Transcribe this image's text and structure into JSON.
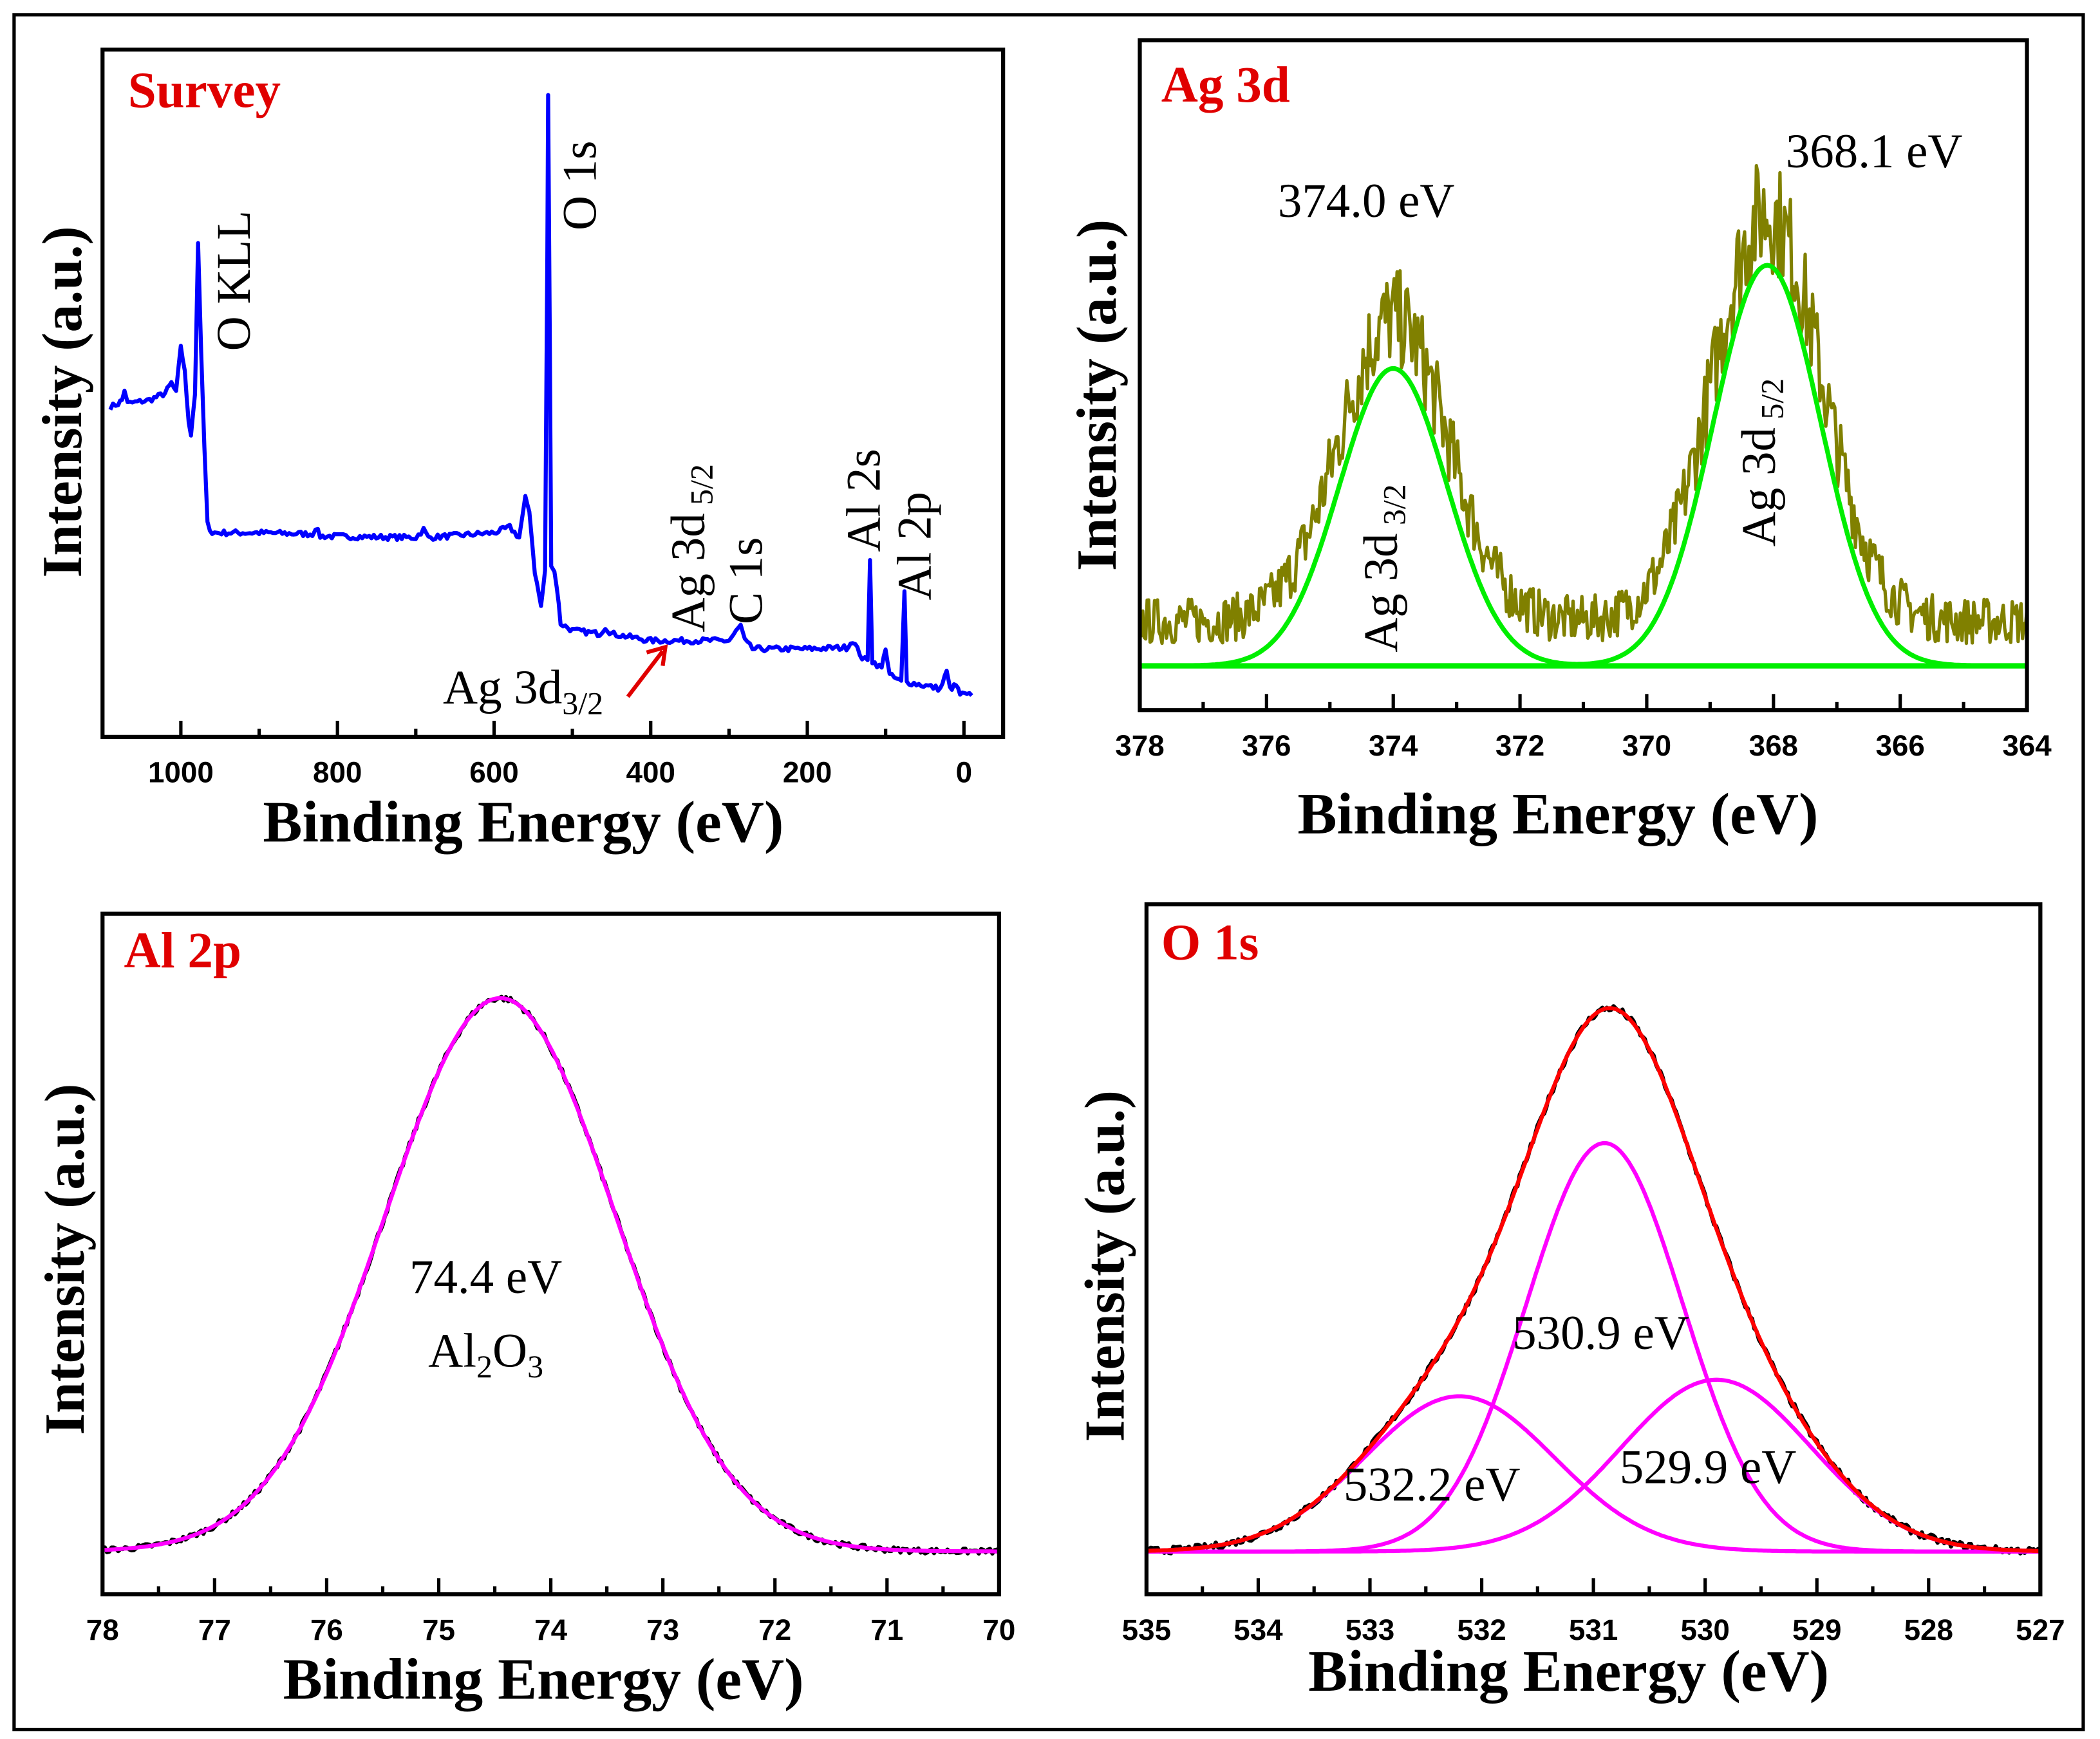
{
  "chart_data": [
    {
      "type": "line",
      "title": "Survey",
      "xlabel": "Binding Energy (eV)",
      "ylabel": "Intensity (a.u.)",
      "xlim": [
        1100,
        -50
      ],
      "ylim": [
        0,
        1
      ],
      "xticks": [
        1000,
        800,
        600,
        400,
        200,
        0
      ],
      "minor_step": 100,
      "color": "#0000ff",
      "points": [
        [
          1090,
          0.48
        ],
        [
          1080,
          0.485
        ],
        [
          1075,
          0.49
        ],
        [
          1072,
          0.505
        ],
        [
          1068,
          0.485
        ],
        [
          1040,
          0.49
        ],
        [
          1020,
          0.5
        ],
        [
          1012,
          0.515
        ],
        [
          1006,
          0.5
        ],
        [
          1000,
          0.57
        ],
        [
          995,
          0.53
        ],
        [
          990,
          0.46
        ],
        [
          987,
          0.44
        ],
        [
          982,
          0.5
        ],
        [
          978,
          0.715
        ],
        [
          974,
          0.56
        ],
        [
          970,
          0.42
        ],
        [
          966,
          0.31
        ],
        [
          960,
          0.297
        ],
        [
          900,
          0.297
        ],
        [
          832,
          0.295
        ],
        [
          828,
          0.305
        ],
        [
          822,
          0.292
        ],
        [
          700,
          0.29
        ],
        [
          690,
          0.302
        ],
        [
          684,
          0.29
        ],
        [
          600,
          0.297
        ],
        [
          580,
          0.305
        ],
        [
          568,
          0.29
        ],
        [
          560,
          0.347
        ],
        [
          555,
          0.33
        ],
        [
          548,
          0.24
        ],
        [
          540,
          0.19
        ],
        [
          535,
          0.24
        ],
        [
          532,
          0.7
        ],
        [
          531,
          0.932
        ],
        [
          529,
          0.6
        ],
        [
          527,
          0.25
        ],
        [
          523,
          0.24
        ],
        [
          520,
          0.22
        ],
        [
          515,
          0.165
        ],
        [
          500,
          0.155
        ],
        [
          465,
          0.15
        ],
        [
          458,
          0.16
        ],
        [
          450,
          0.15
        ],
        [
          400,
          0.14
        ],
        [
          300,
          0.14
        ],
        [
          285,
          0.162
        ],
        [
          280,
          0.14
        ],
        [
          270,
          0.128
        ],
        [
          200,
          0.128
        ],
        [
          150,
          0.13
        ],
        [
          142,
          0.14
        ],
        [
          130,
          0.115
        ],
        [
          123,
          0.11
        ],
        [
          120,
          0.26
        ],
        [
          117,
          0.11
        ],
        [
          105,
          0.1
        ],
        [
          100,
          0.13
        ],
        [
          95,
          0.09
        ],
        [
          80,
          0.08
        ],
        [
          76,
          0.21
        ],
        [
          73,
          0.08
        ],
        [
          30,
          0.07
        ],
        [
          22,
          0.095
        ],
        [
          18,
          0.07
        ],
        [
          10,
          0.075
        ],
        [
          5,
          0.062
        ],
        [
          -10,
          0.06
        ]
      ],
      "annotations": {
        "o_kll": "O KLL",
        "o_1s": "O 1s",
        "ag_3d52_main": "Ag 3d",
        "ag_3d52_sub": "5/2",
        "c_1s": "C 1s",
        "al_2s": "Al 2s",
        "al_2p": "Al 2p",
        "ag_3d32_main": "Ag 3d",
        "ag_3d32_sub": "3/2"
      },
      "arrow_color": "#e00000"
    },
    {
      "type": "line",
      "title": "Ag 3d",
      "xlabel": "Binding Energy (eV)",
      "ylabel": "Intensity (a.u.)",
      "xlim": [
        378,
        364
      ],
      "ylim": [
        0,
        1
      ],
      "xticks": [
        378,
        376,
        374,
        372,
        370,
        368,
        366,
        364
      ],
      "minor_step": 1,
      "raw_color": "#808000",
      "fit_color": "#00ee00",
      "baseline": 0.066,
      "background": 0.07,
      "peaks": [
        {
          "label": "374.0 eV",
          "center": 374.0,
          "height": 0.444,
          "sigma": 0.85,
          "name_main": "Ag 3d",
          "name_sub": "3/2"
        },
        {
          "label": "368.1 eV",
          "center": 368.1,
          "height": 0.598,
          "sigma": 0.85,
          "name_main": "Ag 3d",
          "name_sub": "5/2"
        }
      ]
    },
    {
      "type": "line",
      "title": "Al 2p",
      "xlabel": "Binding Energy (eV)",
      "ylabel": "Intensity (a.u.)",
      "xlim": [
        78,
        70
      ],
      "ylim": [
        0,
        1
      ],
      "xticks": [
        78,
        77,
        76,
        75,
        74,
        73,
        72,
        71,
        70
      ],
      "minor_step": 0.5,
      "raw_color": "#000000",
      "fit_color": "#ff00ff",
      "baseline": 0.063,
      "peaks": [
        {
          "label": "74.4 eV",
          "center": 74.45,
          "height": 0.813,
          "sigma": 1.03,
          "species_main": "Al",
          "species_sub1": "2",
          "species_mid": "O",
          "species_sub2": "3"
        }
      ]
    },
    {
      "type": "line",
      "title": "O 1s",
      "xlabel": "Binding Energy (eV)",
      "ylabel": "Intensity (a.u.)",
      "xlim": [
        535,
        527
      ],
      "ylim": [
        0,
        1
      ],
      "xticks": [
        535,
        534,
        533,
        532,
        531,
        530,
        529,
        528,
        527
      ],
      "minor_step": 0.5,
      "raw_color": "#000000",
      "envelope_color": "#ff0000",
      "fit_color": "#ff00ff",
      "baseline": 0.062,
      "peaks": [
        {
          "label": "530.9 eV",
          "center": 530.9,
          "height": 0.592,
          "sigma": 0.7
        },
        {
          "label": "532.2 eV",
          "center": 532.2,
          "height": 0.225,
          "sigma": 0.85
        },
        {
          "label": "529.9 eV",
          "center": 529.9,
          "height": 0.249,
          "sigma": 0.85
        }
      ]
    }
  ]
}
